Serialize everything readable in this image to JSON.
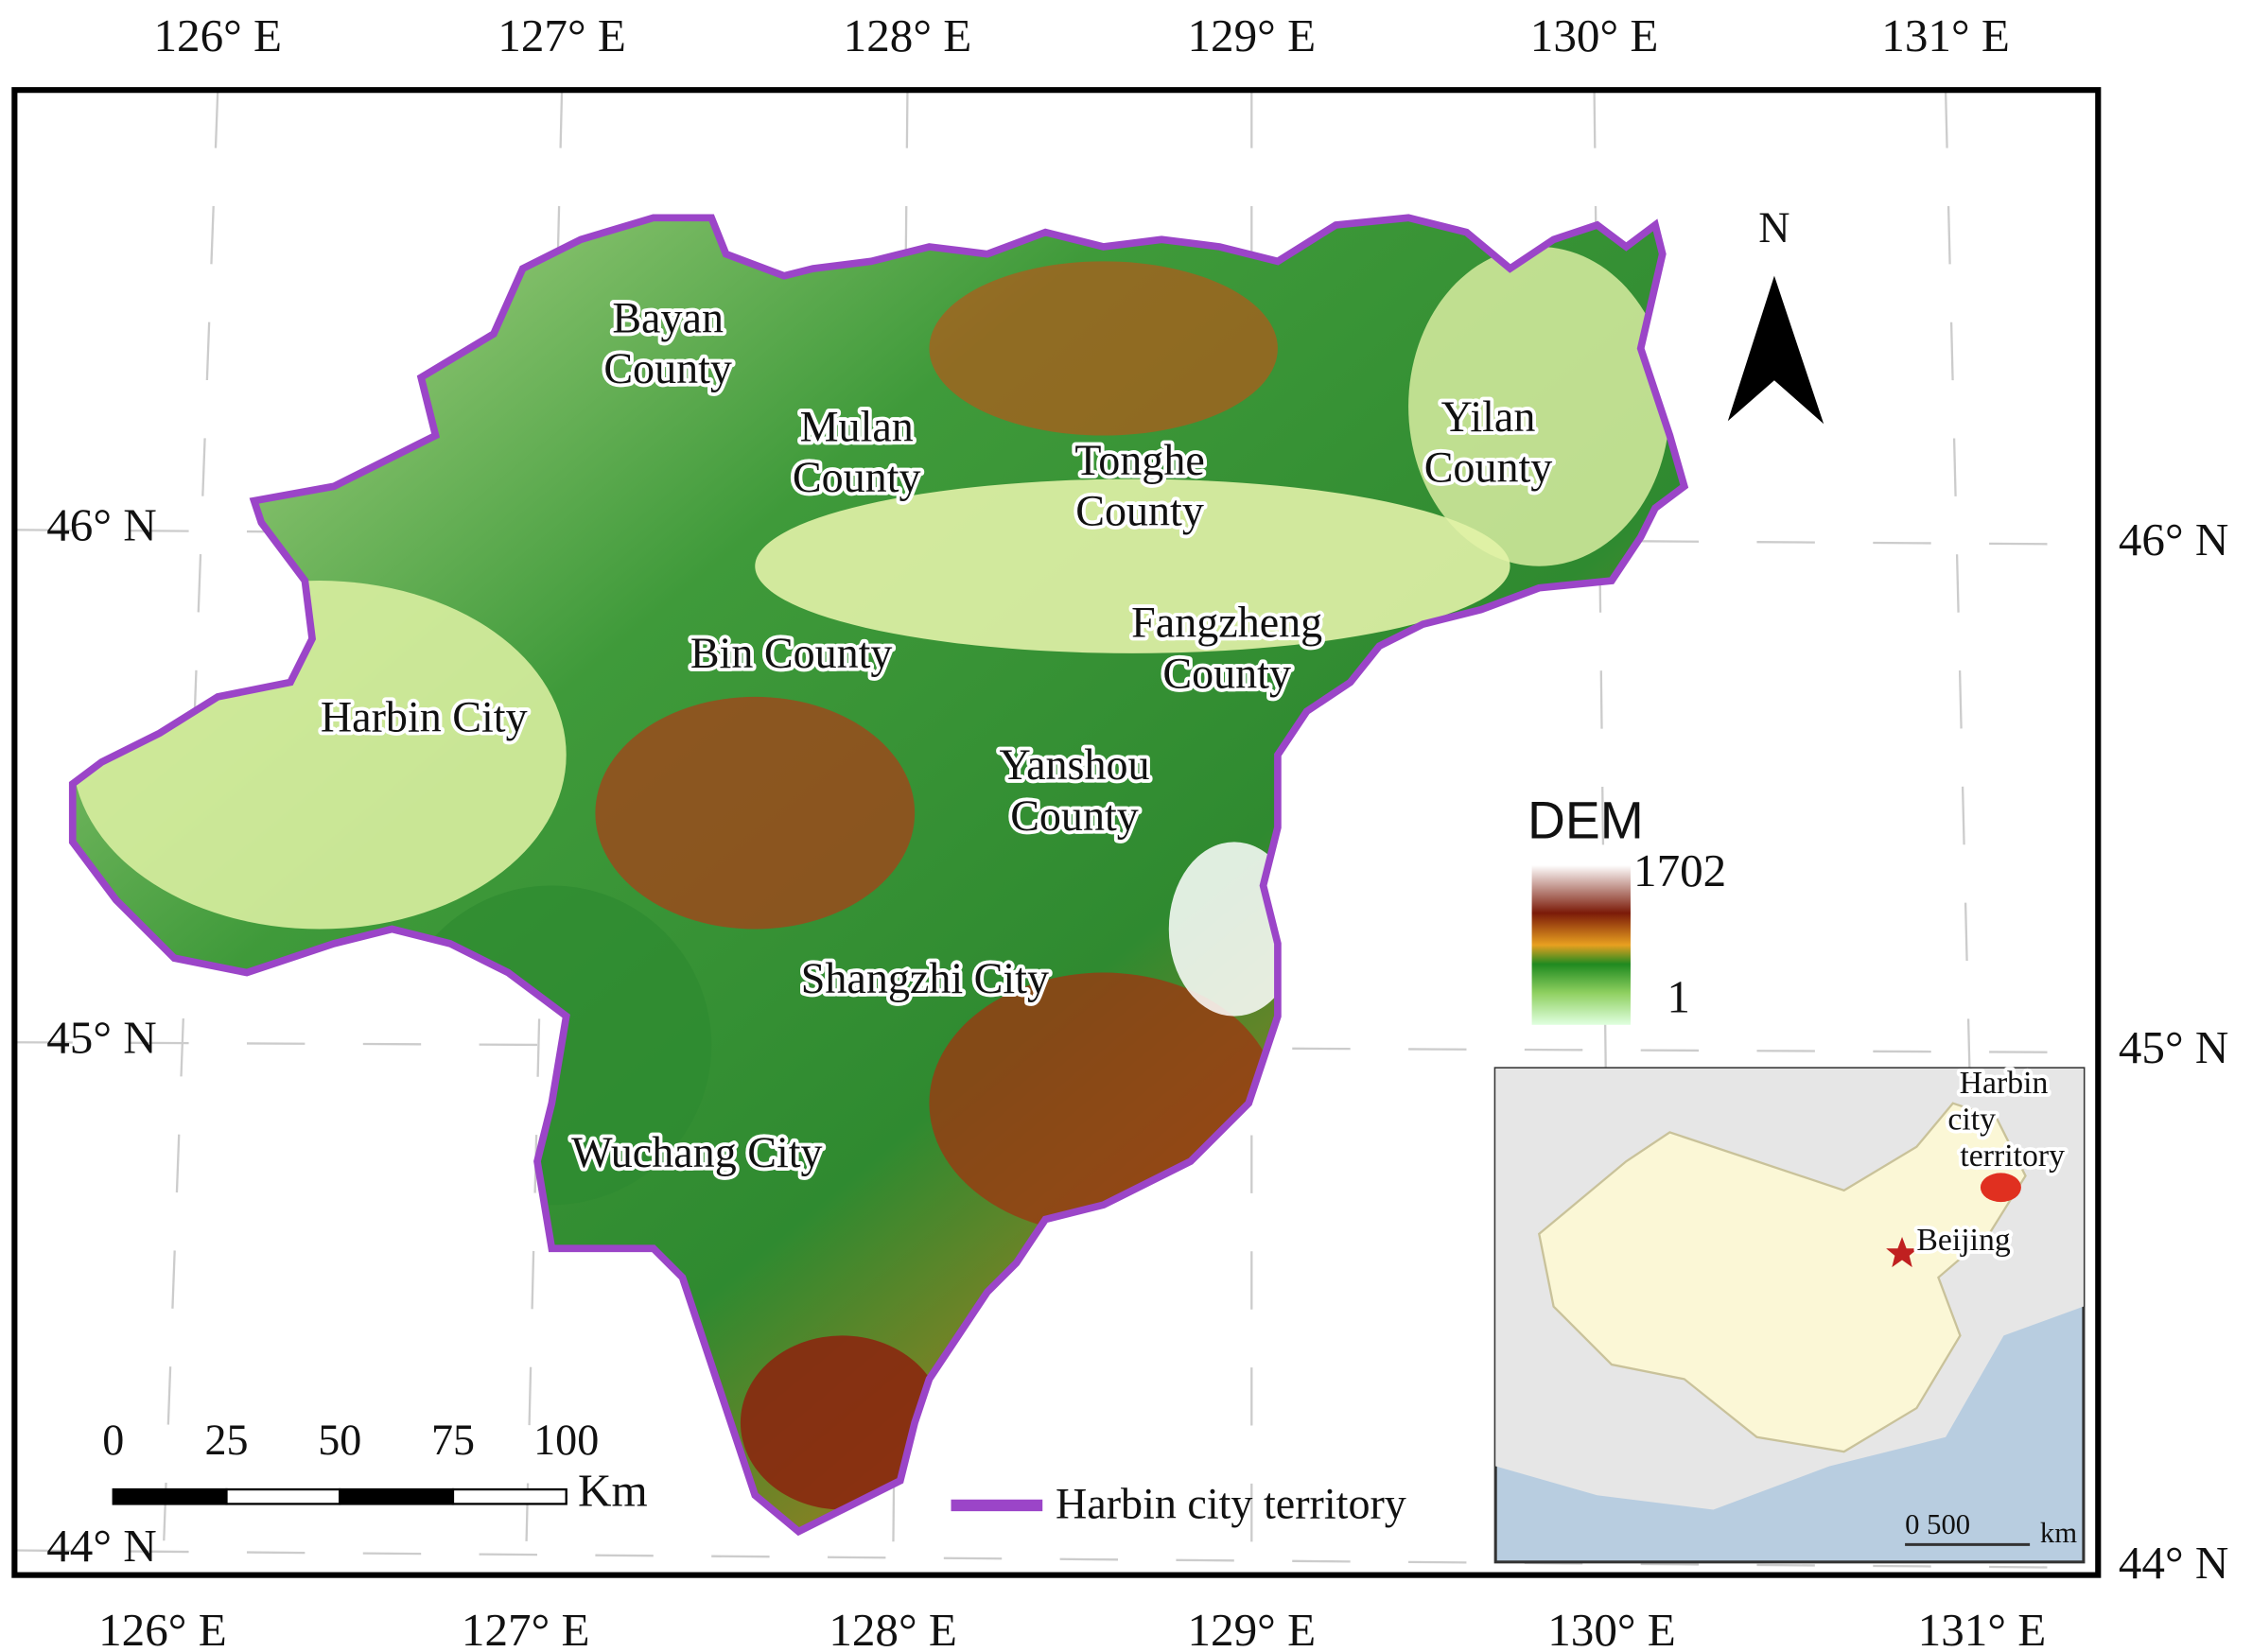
{
  "longitude_labels_top": [
    "126° E",
    "127° E",
    "128° E",
    "129° E",
    "130° E",
    "131° E"
  ],
  "longitude_labels_bottom": [
    "126° E",
    "127° E",
    "128° E",
    "129° E",
    "130° E",
    "131° E"
  ],
  "latitude_labels_left": [
    "46° N",
    "45° N",
    "44° N"
  ],
  "latitude_labels_right": [
    "46° N",
    "45° N",
    "44° N"
  ],
  "north_label": "N",
  "regions": [
    [
      "Bayan",
      "County"
    ],
    [
      "Mulan",
      "County"
    ],
    [
      "Tonghe",
      "County"
    ],
    [
      "Yilan",
      "County"
    ],
    [
      "Bin County"
    ],
    [
      "Fangzheng",
      "County"
    ],
    [
      "Harbin City"
    ],
    [
      "Yanshou",
      "County"
    ],
    [
      "Shangzhi City"
    ],
    [
      "Wuchang City"
    ]
  ],
  "dem_legend": {
    "title": "DEM",
    "max": 1702,
    "min": 1
  },
  "scale_bar": {
    "ticks": [
      0,
      25,
      50,
      75,
      100
    ],
    "unit": "Km"
  },
  "boundary_legend": "Harbin city territory",
  "inset": {
    "territory": [
      "Harbin",
      "city",
      "territory"
    ],
    "capital": "Beijing",
    "scale": "0 500",
    "unit": "km"
  }
}
